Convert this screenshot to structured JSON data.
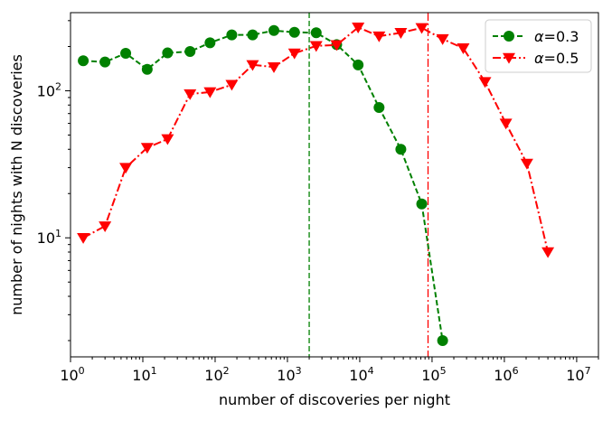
{
  "chart_data": {
    "type": "line",
    "xlabel": "number of discoveries per night",
    "ylabel": "number of nights with N discoveries",
    "xscale": "log",
    "yscale": "log",
    "xlim": [
      1,
      20000000
    ],
    "ylim": [
      1.55,
      340
    ],
    "xticks": [
      {
        "value": 1,
        "base": "10",
        "exp": "0"
      },
      {
        "value": 10,
        "base": "10",
        "exp": "1"
      },
      {
        "value": 100,
        "base": "10",
        "exp": "2"
      },
      {
        "value": 1000,
        "base": "10",
        "exp": "3"
      },
      {
        "value": 10000,
        "base": "10",
        "exp": "4"
      },
      {
        "value": 100000,
        "base": "10",
        "exp": "5"
      },
      {
        "value": 1000000,
        "base": "10",
        "exp": "6"
      },
      {
        "value": 10000000,
        "base": "10",
        "exp": "7"
      }
    ],
    "yticks": [
      {
        "value": 10,
        "base": "10",
        "exp": "1"
      },
      {
        "value": 100,
        "base": "10",
        "exp": "2"
      }
    ],
    "legend_position": "top-right",
    "series": [
      {
        "name": "α=0.3",
        "legend_symbol": "α",
        "legend_text": "=0.3",
        "color": "#008000",
        "linestyle": "dashed",
        "marker": "circle",
        "x": [
          1.5,
          3,
          5.8,
          11.5,
          22,
          45,
          85,
          170,
          330,
          650,
          1250,
          2500,
          4800,
          9500,
          18500,
          37000,
          72000,
          140000
        ],
        "y": [
          160,
          157,
          180,
          140,
          181,
          185,
          212,
          240,
          240,
          257,
          250,
          248,
          206,
          150,
          77,
          40,
          17,
          2
        ]
      },
      {
        "name": "α=0.5",
        "legend_symbol": "α",
        "legend_text": "=0.5",
        "color": "#ff0000",
        "linestyle": "dashdot",
        "marker": "triangle-down",
        "x": [
          1.5,
          3,
          5.8,
          11.5,
          22,
          45,
          85,
          170,
          330,
          650,
          1250,
          2500,
          4800,
          9500,
          18500,
          37000,
          72000,
          140000,
          270000,
          540000,
          1050000,
          2050000,
          4000000
        ],
        "y": [
          10,
          12,
          30,
          41,
          47,
          95,
          98,
          110,
          150,
          145,
          180,
          202,
          205,
          270,
          235,
          248,
          268,
          225,
          195,
          115,
          60,
          32,
          8
        ]
      }
    ],
    "vertical_lines": [
      {
        "x": 2000,
        "color": "#008000",
        "linestyle": "dashed"
      },
      {
        "x": 88000,
        "color": "#ff0000",
        "linestyle": "dashdot"
      }
    ]
  }
}
